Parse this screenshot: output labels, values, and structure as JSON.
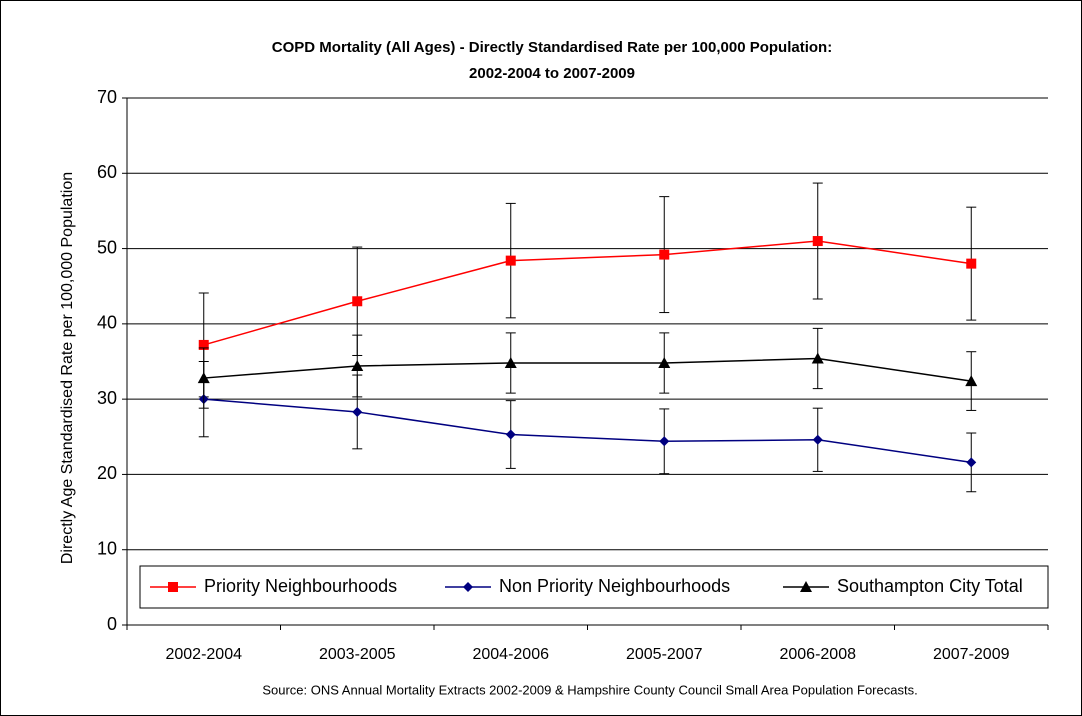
{
  "chart_data": {
    "type": "line",
    "title": [
      "COPD Mortality (All Ages) - Directly Standardised Rate per 100,000 Population:",
      "2002-2004 to 2007-2009"
    ],
    "y_label": "Directly Age Standardised Rate per 100,000 Population",
    "source": "Source: ONS Annual Mortality Extracts 2002-2009 & Hampshire County Council Small Area Population Forecasts.",
    "categories": [
      "2002-2004",
      "2003-2005",
      "2004-2006",
      "2005-2007",
      "2006-2008",
      "2007-2009"
    ],
    "series": [
      {
        "name": "Priority Neighbourhoods",
        "color": "#ff0000",
        "marker": "square",
        "values": [
          37.2,
          43.0,
          48.4,
          49.2,
          51.0,
          48.0
        ],
        "errors": [
          6.9,
          7.2,
          7.6,
          7.7,
          7.7,
          7.5
        ]
      },
      {
        "name": "Non Priority Neighbourhoods",
        "color": "#000080",
        "marker": "diamond",
        "values": [
          30.0,
          28.3,
          25.3,
          24.4,
          24.6,
          21.6
        ],
        "errors": [
          5.0,
          4.9,
          4.5,
          4.3,
          4.2,
          3.9
        ]
      },
      {
        "name": "Southampton City Total",
        "color": "#000000",
        "marker": "triangle",
        "values": [
          32.8,
          34.4,
          34.8,
          34.8,
          35.4,
          32.4
        ],
        "errors": [
          4.0,
          4.1,
          4.0,
          4.0,
          4.0,
          3.9
        ]
      }
    ],
    "ylim": [
      0,
      70
    ],
    "yticks": [
      0,
      10,
      20,
      30,
      40,
      50,
      60,
      70
    ],
    "grid": true,
    "legend": "bottom"
  }
}
